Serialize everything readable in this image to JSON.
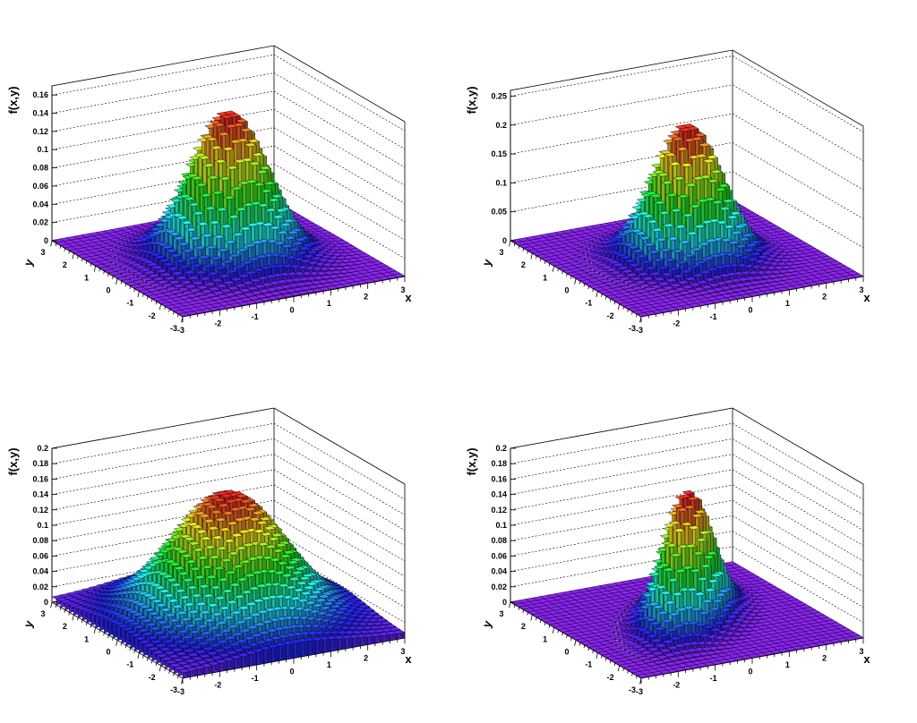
{
  "chart_data": [
    {
      "type": "lego3d",
      "xlabel": "x",
      "ylabel": "y",
      "zlabel": "f(x,y)",
      "xlim": [
        -3,
        3
      ],
      "ylim": [
        -3,
        3
      ],
      "zlim": [
        0,
        0.17
      ],
      "x_ticks": [
        "-3",
        "-2",
        "-1",
        "0",
        "1",
        "2",
        "3"
      ],
      "y_ticks": [
        "-3",
        "-2",
        "-1",
        "0",
        "1",
        "2",
        "3"
      ],
      "z_ticks": [
        "0",
        "0.02",
        "0.04",
        "0.06",
        "0.08",
        "0.1",
        "0.12",
        "0.14",
        "0.16"
      ],
      "bins": [
        30,
        30
      ],
      "peak": 0.16,
      "mean": [
        0,
        0
      ],
      "sigma": [
        0.9,
        0.9
      ],
      "rho": 0,
      "baseline": 0
    },
    {
      "type": "lego3d",
      "xlabel": "x",
      "ylabel": "y",
      "zlabel": "f(x,y)",
      "xlim": [
        -3,
        3
      ],
      "ylim": [
        -3,
        3
      ],
      "zlim": [
        0,
        0.26
      ],
      "x_ticks": [
        "-3",
        "-2",
        "-1",
        "0",
        "1",
        "2",
        "3"
      ],
      "y_ticks": [
        "-3",
        "-2",
        "-1",
        "0",
        "1",
        "2",
        "3"
      ],
      "z_ticks": [
        "0",
        "0.05",
        "0.1",
        "0.15",
        "0.2",
        "0.25"
      ],
      "bins": [
        30,
        30
      ],
      "peak": 0.23,
      "mean": [
        0,
        0
      ],
      "sigma": [
        0.8,
        0.8
      ],
      "rho": 0,
      "baseline": 0
    },
    {
      "type": "lego3d",
      "xlabel": "x",
      "ylabel": "y",
      "zlabel": "f(x,y)",
      "xlim": [
        -3,
        3
      ],
      "ylim": [
        -3,
        3
      ],
      "zlim": [
        0,
        0.2
      ],
      "x_ticks": [
        "-3",
        "-2",
        "-1",
        "0",
        "1",
        "2",
        "3"
      ],
      "y_ticks": [
        "-3",
        "-2",
        "-1",
        "0",
        "1",
        "2",
        "3"
      ],
      "z_ticks": [
        "0",
        "0.02",
        "0.04",
        "0.06",
        "0.08",
        "0.1",
        "0.12",
        "0.14",
        "0.16",
        "0.18",
        "0.2"
      ],
      "bins": [
        30,
        30
      ],
      "peak": 0.165,
      "mean": [
        0,
        0
      ],
      "sigma": [
        1.3,
        1.3
      ],
      "rho": 0,
      "baseline": 0.006
    },
    {
      "type": "lego3d",
      "xlabel": "x",
      "ylabel": "y",
      "zlabel": "f(x,y)",
      "xlim": [
        -3,
        3
      ],
      "ylim": [
        -3,
        3
      ],
      "zlim": [
        0,
        0.2
      ],
      "x_ticks": [
        "-3",
        "-2",
        "-1",
        "0",
        "1",
        "2",
        "3"
      ],
      "y_ticks": [
        "-3",
        "-2",
        "-1",
        "0",
        "1",
        "2",
        "3"
      ],
      "z_ticks": [
        "0",
        "0.02",
        "0.04",
        "0.06",
        "0.08",
        "0.1",
        "0.12",
        "0.14",
        "0.16",
        "0.18",
        "0.2"
      ],
      "bins": [
        30,
        30
      ],
      "peak": 0.165,
      "mean": [
        0,
        0
      ],
      "sigma": [
        0.8,
        0.8
      ],
      "rho": 0.6,
      "baseline": 0
    }
  ]
}
